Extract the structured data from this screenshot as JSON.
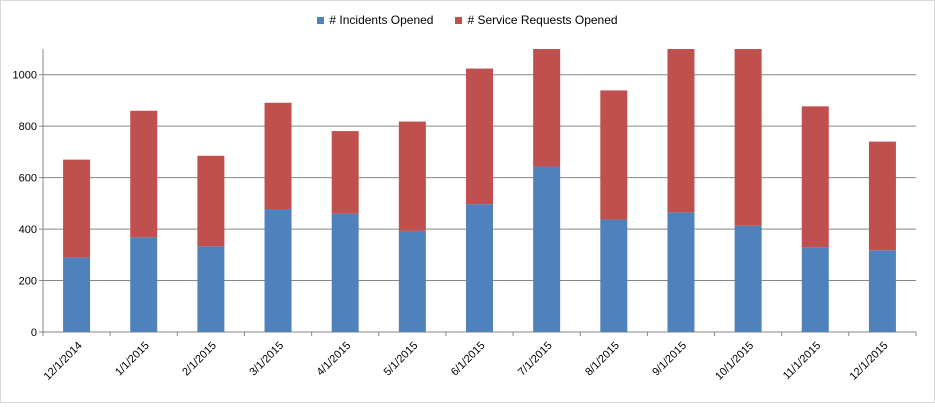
{
  "chart_data": {
    "type": "bar",
    "stacked": true,
    "categories": [
      "12/1/2014",
      "1/1/2015",
      "2/1/2015",
      "3/1/2015",
      "4/1/2015",
      "5/1/2015",
      "6/1/2015",
      "7/1/2015",
      "8/1/2015",
      "9/1/2015",
      "10/1/2015",
      "11/1/2015",
      "12/1/2015"
    ],
    "series": [
      {
        "name": "# Incidents Opened",
        "color": "#4f81bd",
        "values": [
          290,
          368,
          333,
          478,
          460,
          393,
          497,
          643,
          437,
          465,
          413,
          330,
          318
        ]
      },
      {
        "name": "# Service Requests Opened",
        "color": "#c0504d",
        "values": [
          380,
          492,
          352,
          413,
          321,
          425,
          527,
          457,
          502,
          635,
          687,
          547,
          422
        ]
      }
    ],
    "ylim": [
      0,
      1100
    ],
    "yticks": [
      0,
      200,
      400,
      600,
      800,
      1000
    ],
    "grid": true,
    "legend_position": "top",
    "title": "",
    "xlabel": "",
    "ylabel": ""
  }
}
